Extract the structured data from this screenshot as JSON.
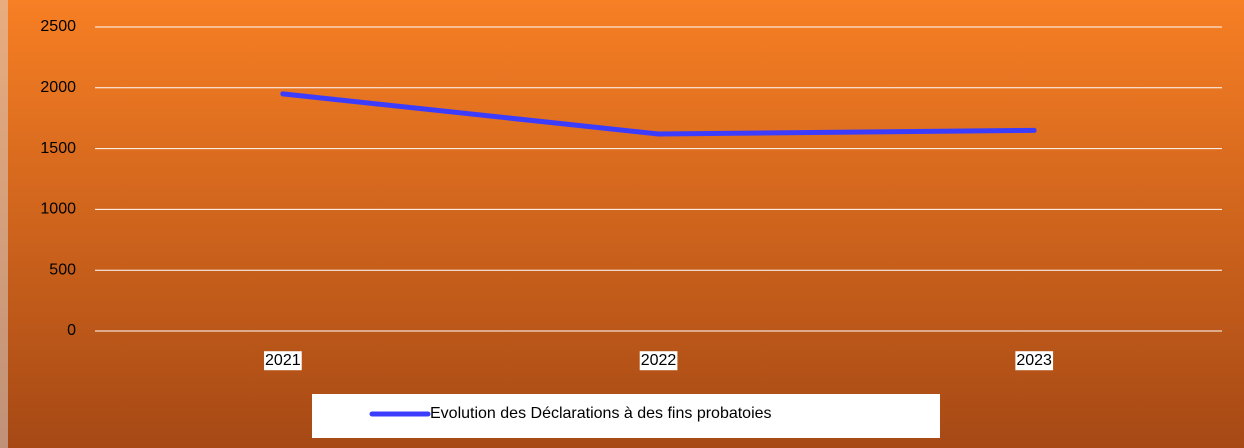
{
  "chart_data": {
    "type": "line",
    "categories": [
      "2021",
      "2022",
      "2023"
    ],
    "series": [
      {
        "name": "Evolution des Déclarations à des fins probatoies",
        "color": "#3c3cff",
        "values": [
          1950,
          1620,
          1650
        ]
      }
    ],
    "ylim": [
      0,
      2500
    ],
    "yticks": [
      0,
      500,
      1000,
      1500,
      2000,
      2500
    ],
    "grid": true,
    "legend": "bottom"
  }
}
